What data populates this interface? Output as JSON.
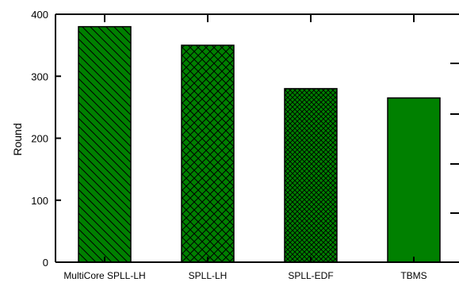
{
  "chart_data": {
    "type": "bar",
    "title": "",
    "xlabel": "",
    "ylabel": "Round",
    "ylim": [
      0,
      400
    ],
    "yticks": [
      "0",
      "100",
      "200",
      "300",
      "400"
    ],
    "categories": [
      "MultiCore SPLL-LH",
      "SPLL-LH",
      "SPLL-EDF",
      "TBMS"
    ],
    "values": [
      380,
      350,
      280,
      265
    ],
    "bar_color": "#008000",
    "patterns": [
      "diagonal",
      "crosshatch",
      "dense-crosshatch",
      "solid"
    ],
    "grid": false,
    "legend": "none"
  }
}
